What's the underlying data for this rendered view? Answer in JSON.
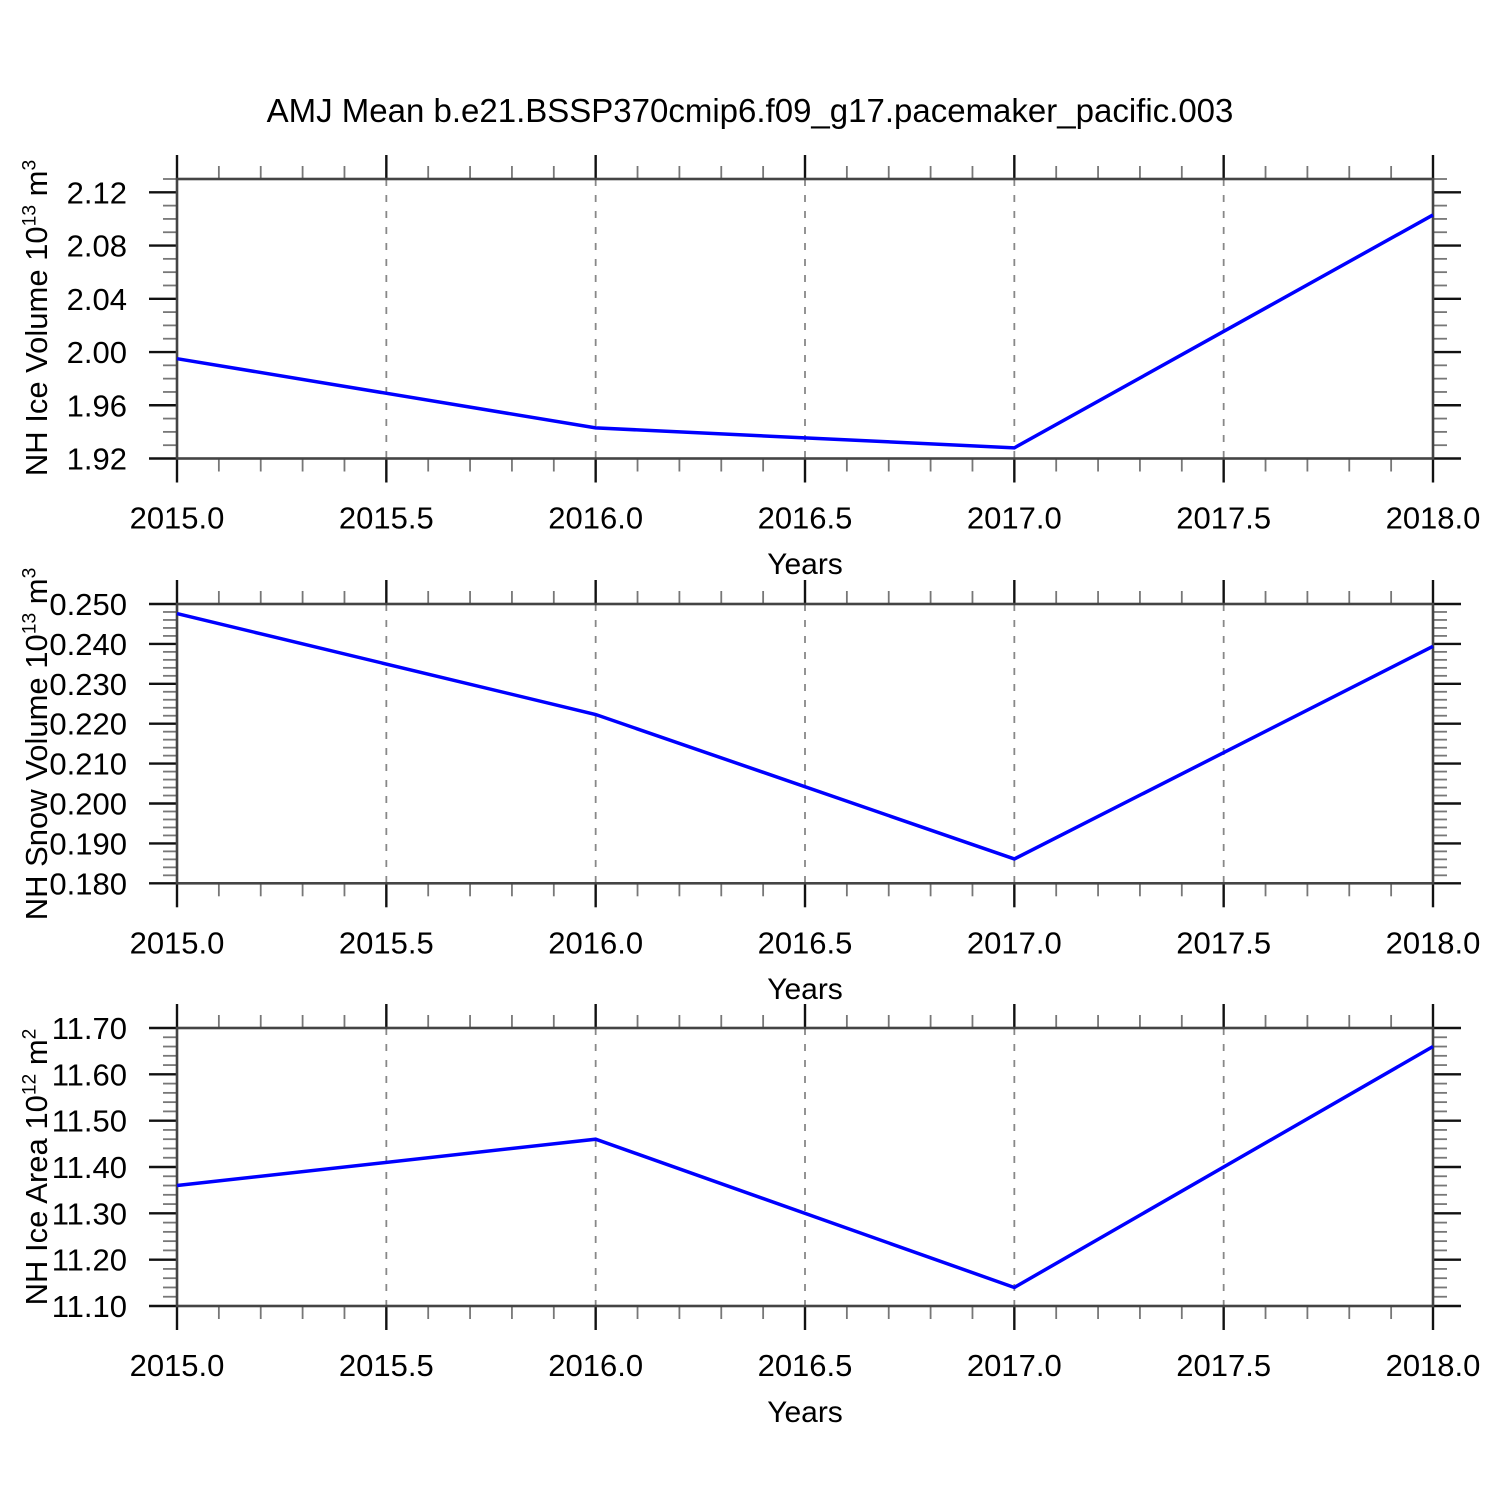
{
  "title": "AMJ Mean b.e21.BSSP370cmip6.f09_g17.pacemaker_pacific.003",
  "colors": {
    "line": "#0000ff",
    "frame": "#444444",
    "major_tick": "#111111",
    "minor_tick": "#777777",
    "grid": "#888888",
    "text": "#000000"
  },
  "chart_data": [
    {
      "type": "line",
      "xlabel": "Years",
      "ylabel": {
        "text": "NH Ice Volume 10",
        "exp": "13",
        "unit": " m",
        "unit_exp": "3"
      },
      "x": [
        2015.0,
        2016.0,
        2017.0,
        2018.0
      ],
      "values": [
        1.995,
        1.943,
        1.928,
        2.103
      ],
      "xlim": [
        2015.0,
        2018.0
      ],
      "ylim": [
        1.92,
        2.13
      ],
      "x_major": [
        2015.0,
        2015.5,
        2016.0,
        2016.5,
        2017.0,
        2017.5,
        2018.0
      ],
      "x_major_labels": [
        "2015.0",
        "2015.5",
        "2016.0",
        "2016.5",
        "2017.0",
        "2017.5",
        "2018.0"
      ],
      "x_minor_step": 0.1,
      "y_major": [
        1.92,
        1.96,
        2.0,
        2.04,
        2.08,
        2.12
      ],
      "y_major_labels": [
        "1.92",
        "1.96",
        "2.00",
        "2.04",
        "2.08",
        "2.12"
      ],
      "y_minor_step": 0.01,
      "grid_x": [
        2015.5,
        2016.0,
        2016.5,
        2017.0,
        2017.5
      ],
      "grid_on": true,
      "legend": "none"
    },
    {
      "type": "line",
      "xlabel": "Years",
      "ylabel": {
        "text": "NH Snow Volume 10",
        "exp": "13",
        "unit": " m",
        "unit_exp": "3"
      },
      "x": [
        2015.0,
        2016.0,
        2017.0,
        2018.0
      ],
      "values": [
        0.2476,
        0.2223,
        0.1861,
        0.2394
      ],
      "xlim": [
        2015.0,
        2018.0
      ],
      "ylim": [
        0.18,
        0.25
      ],
      "x_major": [
        2015.0,
        2015.5,
        2016.0,
        2016.5,
        2017.0,
        2017.5,
        2018.0
      ],
      "x_major_labels": [
        "2015.0",
        "2015.5",
        "2016.0",
        "2016.5",
        "2017.0",
        "2017.5",
        "2018.0"
      ],
      "x_minor_step": 0.1,
      "y_major": [
        0.18,
        0.19,
        0.2,
        0.21,
        0.22,
        0.23,
        0.24,
        0.25
      ],
      "y_major_labels": [
        "0.180",
        "0.190",
        "0.200",
        "0.210",
        "0.220",
        "0.230",
        "0.240",
        "0.250"
      ],
      "y_minor_step": 0.002,
      "grid_x": [
        2015.5,
        2016.0,
        2016.5,
        2017.0,
        2017.5
      ],
      "grid_on": true,
      "legend": "none"
    },
    {
      "type": "line",
      "xlabel": "Years",
      "ylabel": {
        "text": "NH Ice Area 10",
        "exp": "12",
        "unit": " m",
        "unit_exp": "2"
      },
      "x": [
        2015.0,
        2016.0,
        2017.0,
        2018.0
      ],
      "values": [
        11.36,
        11.46,
        11.14,
        11.66
      ],
      "xlim": [
        2015.0,
        2018.0
      ],
      "ylim": [
        11.1,
        11.7
      ],
      "x_major": [
        2015.0,
        2015.5,
        2016.0,
        2016.5,
        2017.0,
        2017.5,
        2018.0
      ],
      "x_major_labels": [
        "2015.0",
        "2015.5",
        "2016.0",
        "2016.5",
        "2017.0",
        "2017.5",
        "2018.0"
      ],
      "x_minor_step": 0.1,
      "y_major": [
        11.1,
        11.2,
        11.3,
        11.4,
        11.5,
        11.6,
        11.7
      ],
      "y_major_labels": [
        "11.10",
        "11.20",
        "11.30",
        "11.40",
        "11.50",
        "11.60",
        "11.70"
      ],
      "y_minor_step": 0.02,
      "grid_x": [
        2015.5,
        2016.0,
        2016.5,
        2017.0,
        2017.5
      ],
      "grid_on": true,
      "legend": "none"
    }
  ]
}
